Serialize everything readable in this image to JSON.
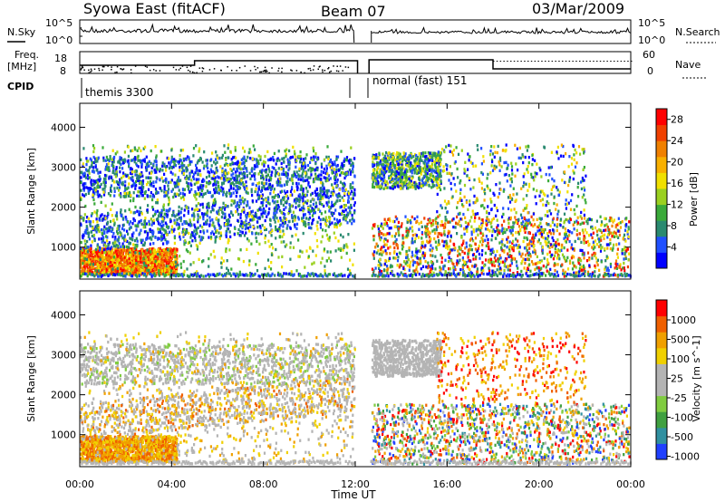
{
  "header": {
    "station": "Syowa East (fitACF)",
    "beam": "Beam 07",
    "date": "03/Mar/2009"
  },
  "strip_labels": {
    "nsky": "N.Sky",
    "nsearch": "N.Search",
    "freq_top": "Freq.",
    "freq_unit": "[MHz]",
    "nave": "Nave",
    "cpid": "CPID",
    "noise_hi": "10^5",
    "noise_lo": "10^0",
    "freq_hi": "18",
    "freq_lo": "8",
    "nave_hi": "60",
    "nave_lo": "0"
  },
  "cpid_segments": [
    {
      "label": "themis 3300",
      "start_hour": 0,
      "end_hour": 12.15
    },
    {
      "label": "normal (fast) 151",
      "start_hour": 12.6,
      "end_hour": 24
    }
  ],
  "colors": {
    "power": [
      "#0000ff",
      "#2050ff",
      "#2a8a70",
      "#3aaa3a",
      "#9ad020",
      "#f0e000",
      "#f8b000",
      "#f08000",
      "#f04000",
      "#ff0000"
    ],
    "velocity": [
      "#2040ff",
      "#3090a0",
      "#40a040",
      "#80cc40",
      "#b4b4b4",
      "#b4b4b4",
      "#f0d000",
      "#f0a000",
      "#f06000",
      "#ff0000"
    ]
  },
  "chart_data": [
    {
      "type": "heatmap",
      "panel": "power",
      "ylabel": "Slant Range [km]",
      "yticks": [
        "1000",
        "2000",
        "3000",
        "4000"
      ],
      "ylim": [
        200,
        4600
      ],
      "colorbar_label": "Power [dB]",
      "colorbar_ticks": [
        "4",
        "8",
        "12",
        "16",
        "20",
        "24",
        "28"
      ],
      "colorbar_range": [
        0,
        30
      ]
    },
    {
      "type": "heatmap",
      "panel": "velocity",
      "ylabel": "Slant Range [km]",
      "yticks": [
        "1000",
        "2000",
        "3000",
        "4000"
      ],
      "ylim": [
        200,
        4600
      ],
      "colorbar_label": "Velocity [m s^-1]",
      "colorbar_ticks": [
        "1000",
        "500",
        "100",
        "25",
        "-25",
        "-100",
        "-500",
        "-1000"
      ]
    }
  ],
  "xaxis": {
    "label": "Time UT",
    "ticks": [
      "00:00",
      "04:00",
      "08:00",
      "12:00",
      "16:00",
      "20:00",
      "00:00"
    ],
    "range_hours": [
      0,
      24
    ]
  }
}
